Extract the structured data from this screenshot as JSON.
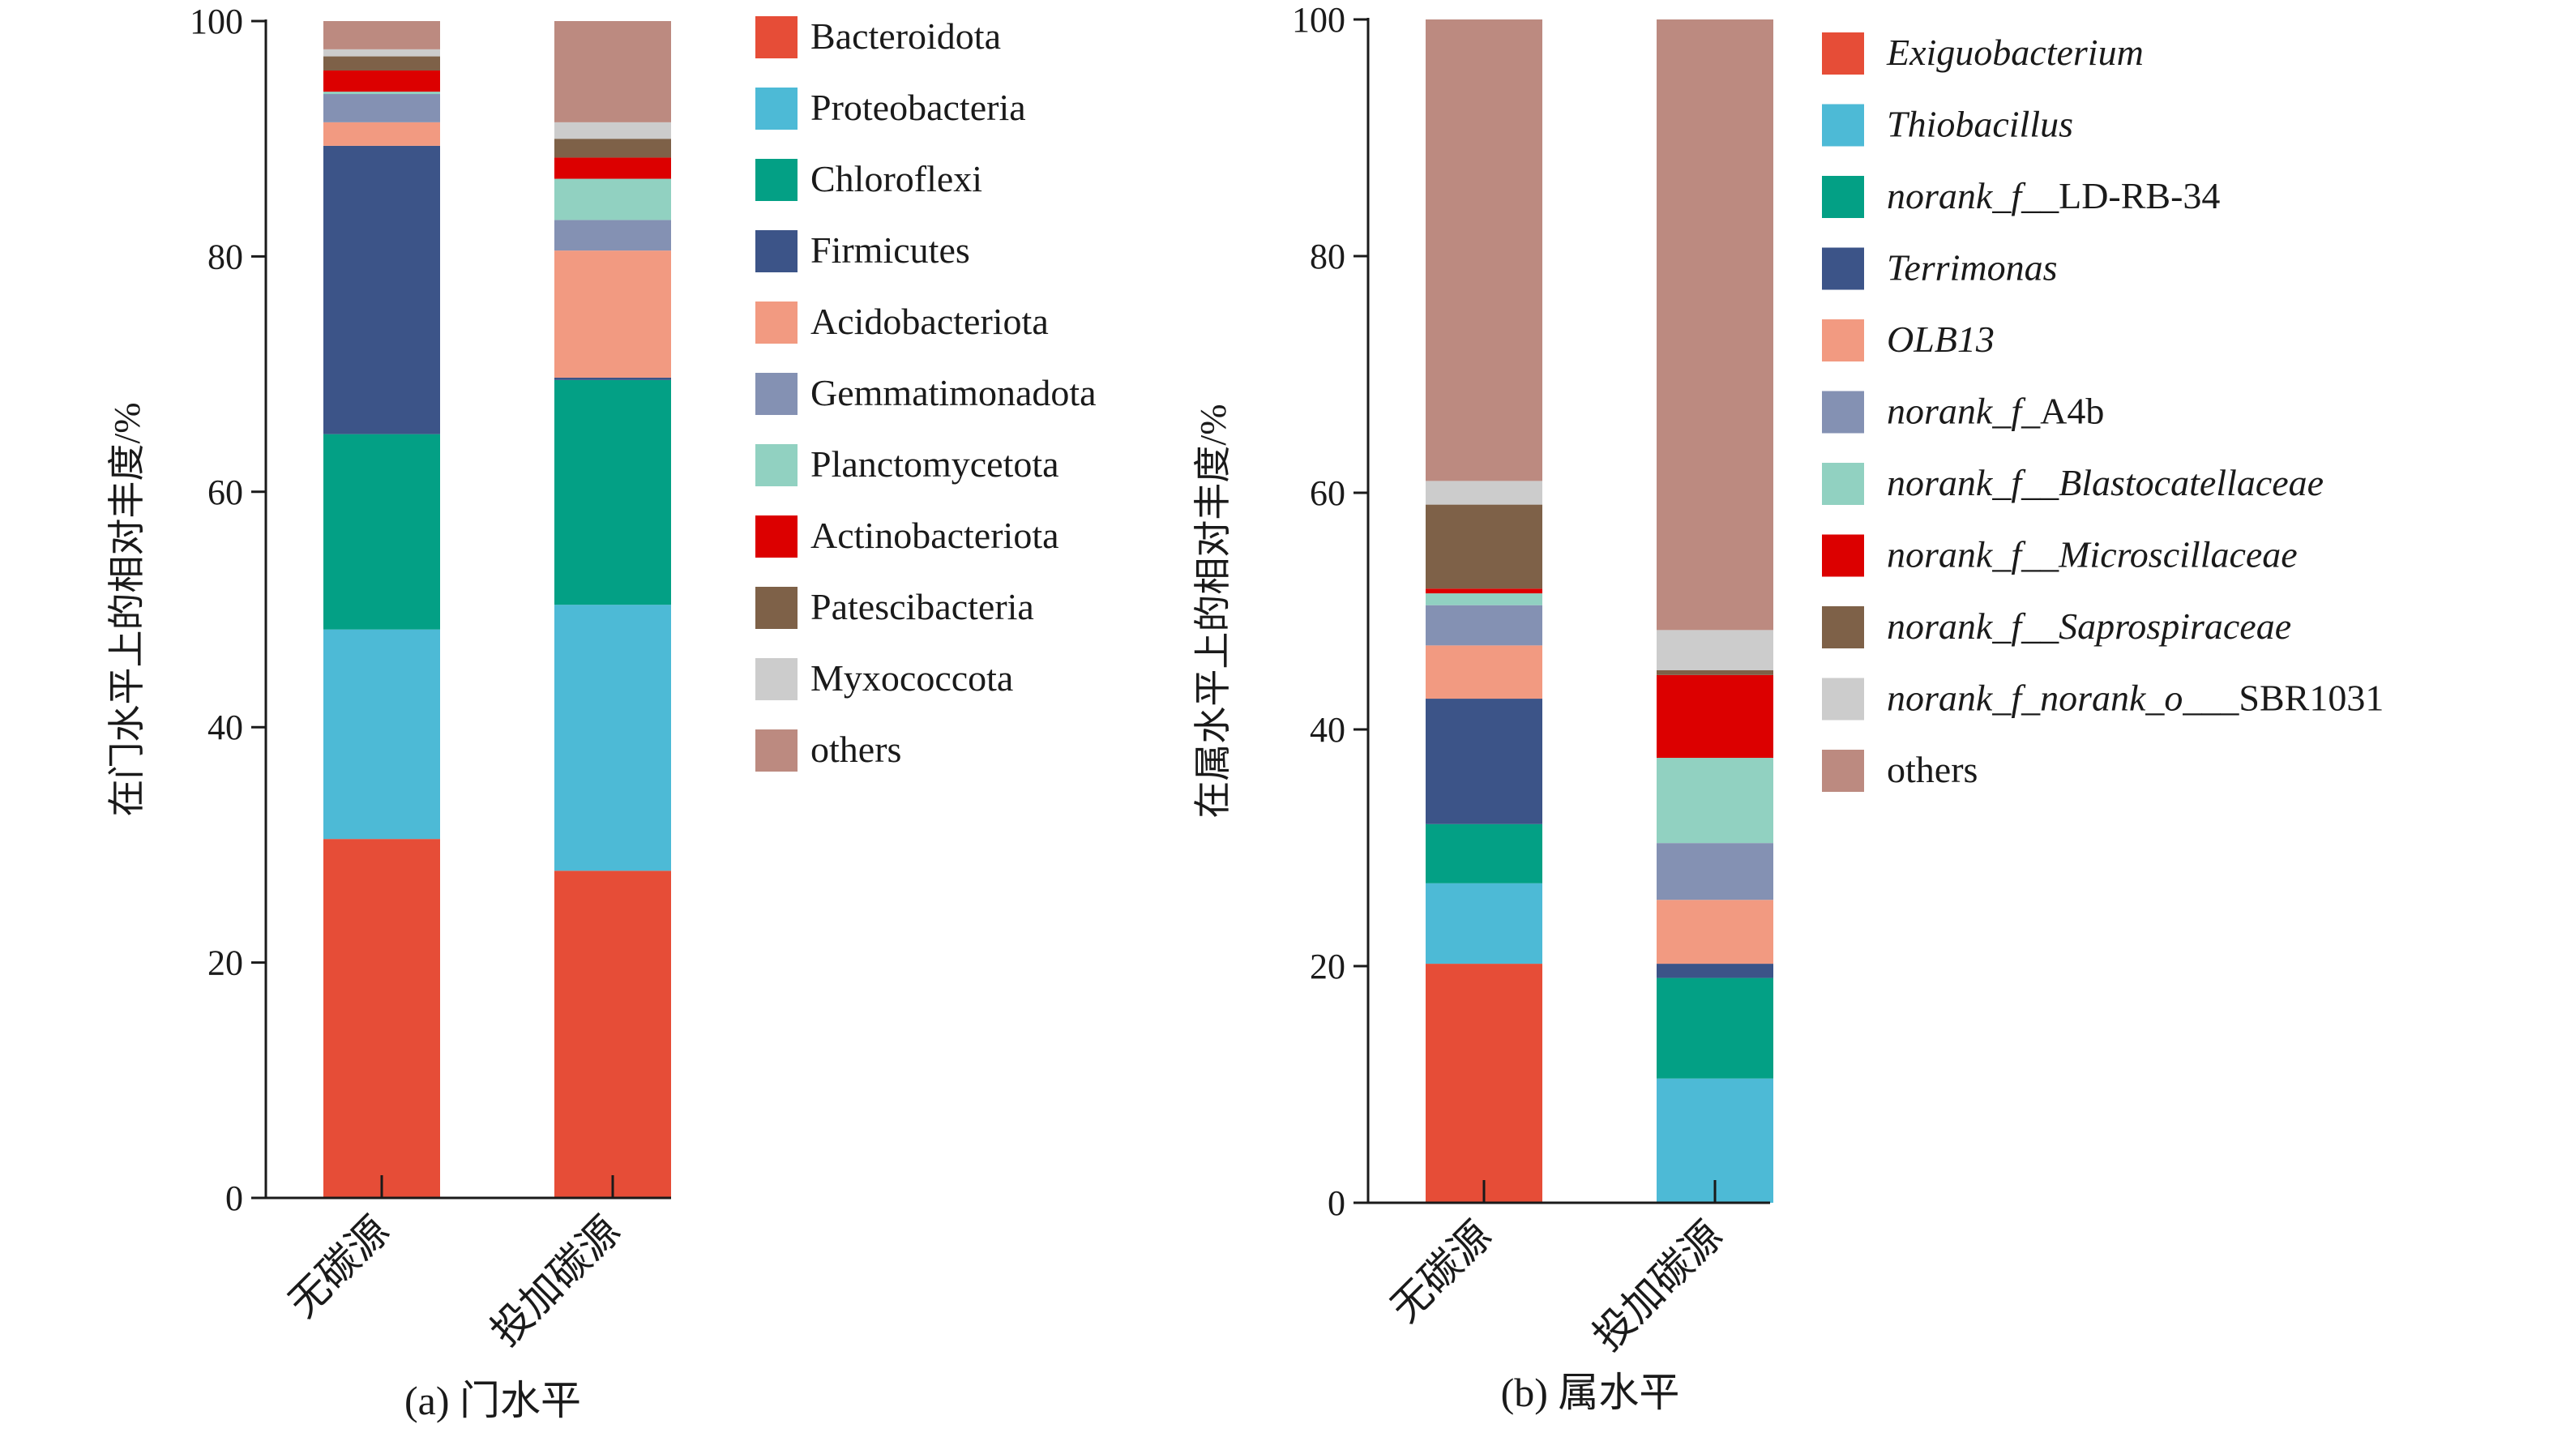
{
  "chart_data": [
    {
      "type": "bar",
      "stacked": true,
      "caption": "(a) 门水平",
      "ylabel": "在门水平上的相对丰度/%",
      "xlabel": "",
      "ylim": [
        0,
        100
      ],
      "yticks": [
        0,
        20,
        40,
        60,
        80,
        100
      ],
      "categories": [
        "无碳源",
        "投加碳源"
      ],
      "legend_position": "right",
      "series": [
        {
          "name": "Bacteroidota",
          "color": "#E64D37",
          "italic": false,
          "values": [
            30.5,
            27.8
          ]
        },
        {
          "name": "Proteobacteria",
          "color": "#4DBAD6",
          "italic": false,
          "values": [
            17.8,
            22.6
          ]
        },
        {
          "name": "Chloroflexi",
          "color": "#03A085",
          "italic": false,
          "values": [
            16.6,
            19.1
          ]
        },
        {
          "name": "Firmicutes",
          "color": "#3C5488",
          "italic": false,
          "values": [
            24.5,
            0.2
          ]
        },
        {
          "name": "Acidobacteriota",
          "color": "#F29A81",
          "italic": false,
          "values": [
            2.0,
            10.8
          ]
        },
        {
          "name": "Gemmatimonadota",
          "color": "#8491B3",
          "italic": false,
          "values": [
            2.4,
            2.6
          ]
        },
        {
          "name": "Planctomycetota",
          "color": "#91D1C1",
          "italic": false,
          "values": [
            0.2,
            3.5
          ]
        },
        {
          "name": "Actinobacteriota",
          "color": "#DC0000",
          "italic": false,
          "values": [
            1.8,
            1.8
          ]
        },
        {
          "name": "Patescibacteria",
          "color": "#7E6148",
          "italic": false,
          "values": [
            1.2,
            1.6
          ]
        },
        {
          "name": "Myxococcota",
          "color": "#CCCCCC",
          "italic": false,
          "values": [
            0.6,
            1.4
          ]
        },
        {
          "name": "others",
          "color": "#BC8A80",
          "italic": false,
          "values": [
            2.4,
            8.6
          ]
        }
      ]
    },
    {
      "type": "bar",
      "stacked": true,
      "caption": "(b) 属水平",
      "ylabel": "在属水平上的相对丰度/%",
      "xlabel": "",
      "ylim": [
        0,
        100
      ],
      "yticks": [
        0,
        20,
        40,
        60,
        80,
        100
      ],
      "categories": [
        "无碳源",
        "投加碳源"
      ],
      "legend_position": "right",
      "series": [
        {
          "name": "Exiguobacterium",
          "color": "#E64D37",
          "parts": [
            {
              "t": "Exiguobacterium",
              "i": true
            }
          ],
          "values": [
            20.2,
            0.0
          ]
        },
        {
          "name": "Thiobacillus",
          "color": "#4DBAD6",
          "parts": [
            {
              "t": "Thiobacillus",
              "i": true
            }
          ],
          "values": [
            6.8,
            10.5
          ]
        },
        {
          "name": "norank_f__LD-RB-34",
          "color": "#03A085",
          "parts": [
            {
              "t": "norank_f",
              "i": true
            },
            {
              "t": "__LD-RB-34",
              "i": false
            }
          ],
          "values": [
            5.0,
            8.5
          ]
        },
        {
          "name": "Terrimonas",
          "color": "#3C5488",
          "parts": [
            {
              "t": "Terrimonas",
              "i": true
            }
          ],
          "values": [
            10.6,
            1.2
          ]
        },
        {
          "name": "OLB13",
          "color": "#F29A81",
          "parts": [
            {
              "t": "OLB13",
              "i": true
            }
          ],
          "values": [
            4.5,
            5.4
          ]
        },
        {
          "name": "norank_f_A4b",
          "color": "#8491B3",
          "parts": [
            {
              "t": "norank_f",
              "i": true
            },
            {
              "t": "_A4b",
              "i": false
            }
          ],
          "values": [
            3.4,
            4.8
          ]
        },
        {
          "name": "norank_f__Blastocatellaceae",
          "color": "#91D1C1",
          "parts": [
            {
              "t": "norank_f__Blastocatellaceae",
              "i": true
            }
          ],
          "values": [
            1.0,
            7.2
          ]
        },
        {
          "name": "norank_f__Microscillaceae",
          "color": "#DC0000",
          "parts": [
            {
              "t": "norank_f__Microscillaceae",
              "i": true
            }
          ],
          "values": [
            0.4,
            7.0
          ]
        },
        {
          "name": "norank_f__Saprospiraceae",
          "color": "#7E6148",
          "parts": [
            {
              "t": "norank_f__Saprospiraceae",
              "i": true
            }
          ],
          "values": [
            7.1,
            0.4
          ]
        },
        {
          "name": "norank_f_norank_o___SBR1031",
          "color": "#CCCCCC",
          "parts": [
            {
              "t": "norank_f_norank_o",
              "i": true
            },
            {
              "t": "___SBR1031",
              "i": false
            }
          ],
          "values": [
            2.0,
            3.4
          ]
        },
        {
          "name": "others",
          "color": "#BC8A80",
          "parts": [
            {
              "t": "others",
              "i": false
            }
          ],
          "values": [
            39.0,
            51.6
          ]
        }
      ]
    }
  ]
}
